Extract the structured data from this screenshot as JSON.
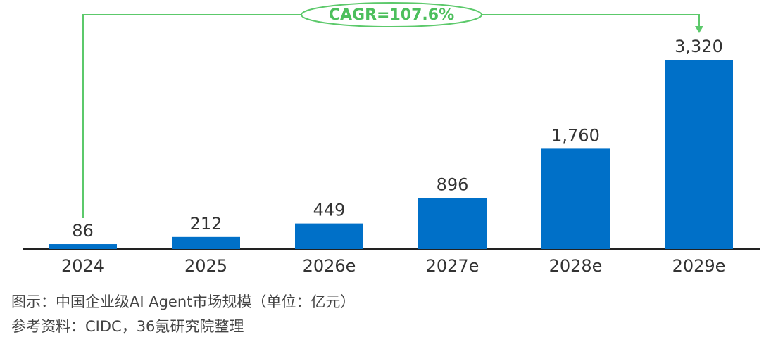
{
  "chart_data": {
    "type": "bar",
    "categories": [
      "2024",
      "2025",
      "2026e",
      "2027e",
      "2028e",
      "2029e"
    ],
    "values": [
      86,
      212,
      449,
      896,
      1760,
      3320
    ],
    "value_labels": [
      "86",
      "212",
      "449",
      "896",
      "1,760",
      "3,320"
    ],
    "color": "#0070c8",
    "annotation": "CAGR=107.6%",
    "caption": "图示：中国企业级AI Agent市场规模（单位：亿元）",
    "source": "参考资料：CIDC，36氪研究院整理"
  }
}
